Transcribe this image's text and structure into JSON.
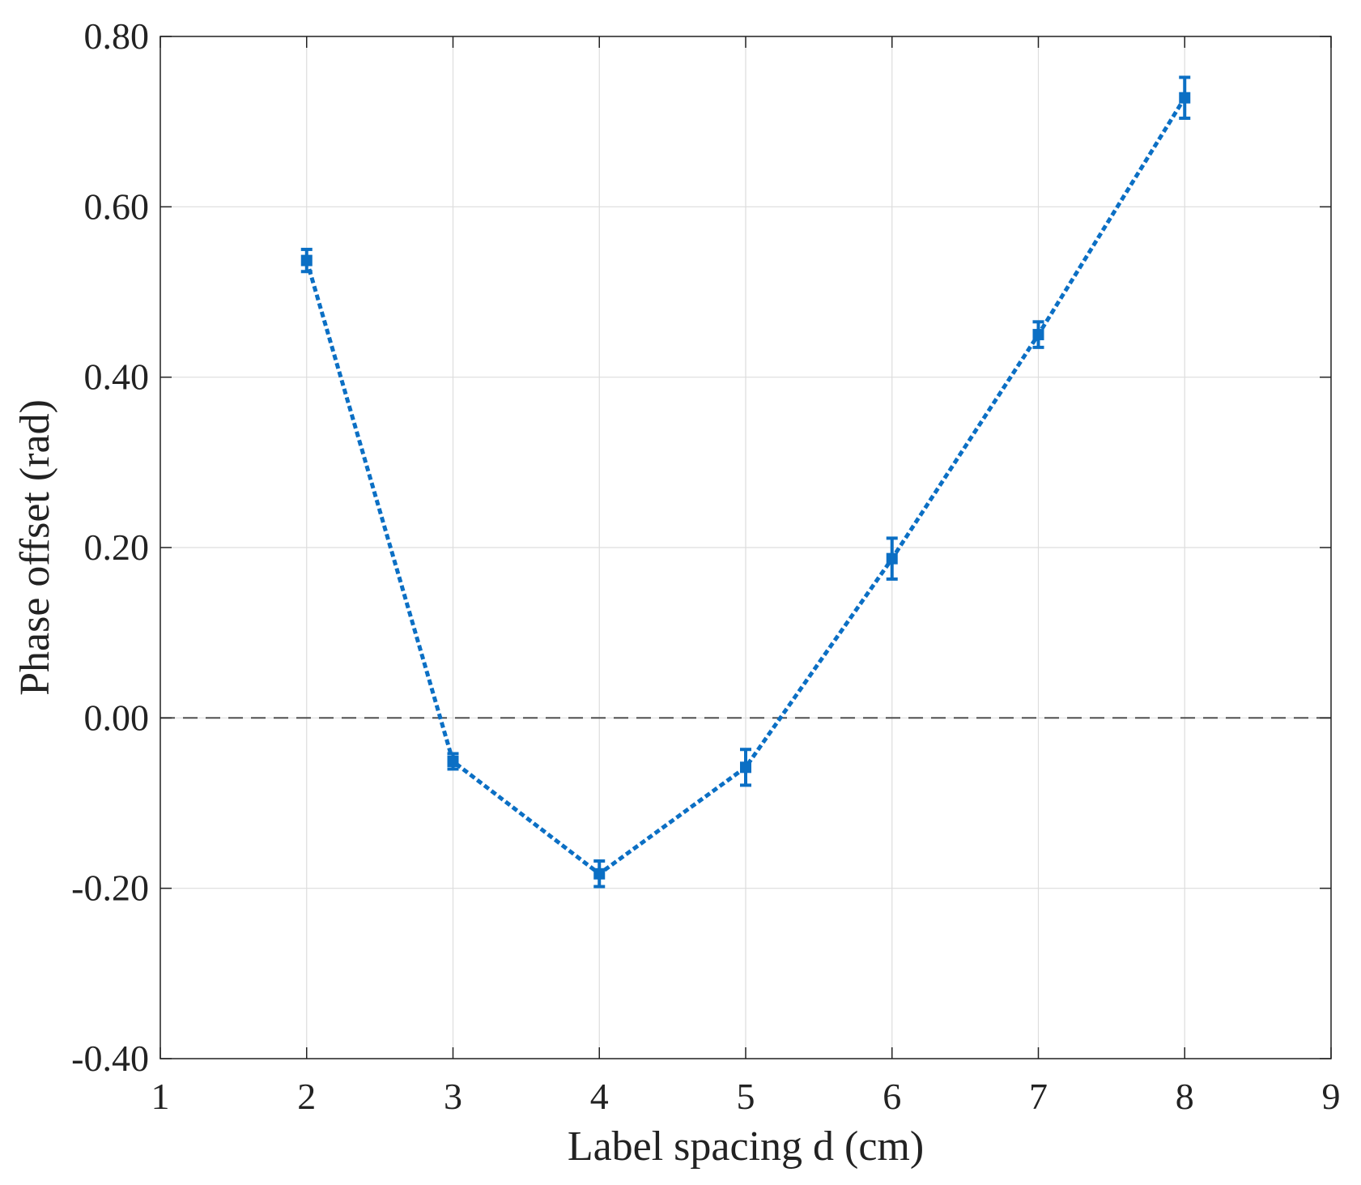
{
  "chart_data": {
    "type": "line",
    "title": "",
    "xlabel": "Label spacing d (cm)",
    "ylabel": "Phase offset (rad)",
    "xlim": [
      1,
      9
    ],
    "ylim": [
      -0.4,
      0.8
    ],
    "xticks": [
      1,
      2,
      3,
      4,
      5,
      6,
      7,
      8,
      9
    ],
    "xtick_labels": [
      "1",
      "2",
      "3",
      "4",
      "5",
      "6",
      "7",
      "8",
      "9"
    ],
    "yticks": [
      -0.4,
      -0.2,
      0.0,
      0.2,
      0.4,
      0.6,
      0.8
    ],
    "ytick_labels": [
      "-0.40",
      "-0.20",
      "0.00",
      "0.20",
      "0.40",
      "0.60",
      "0.80"
    ],
    "grid": true,
    "reference_line": {
      "y": 0.0,
      "style": "dashed",
      "color": "#444444"
    },
    "series": [
      {
        "color": "#0B6FC4",
        "line_style": "dotted",
        "marker": "square",
        "x": [
          2,
          3,
          4,
          5,
          6,
          7,
          8
        ],
        "y": [
          0.537,
          -0.051,
          -0.183,
          -0.058,
          0.187,
          0.45,
          0.728
        ],
        "error": [
          0.013,
          0.009,
          0.015,
          0.021,
          0.024,
          0.015,
          0.024
        ]
      }
    ]
  }
}
